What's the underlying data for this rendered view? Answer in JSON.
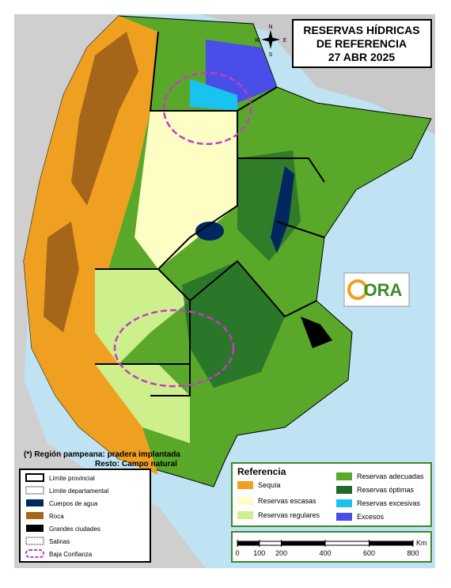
{
  "header": {
    "title_lines": [
      "RESERVAS HÍDRICAS",
      "DE REFERENCIA",
      "27 ABR 2025"
    ]
  },
  "compass": {
    "north": "N",
    "south": "S",
    "east": "E",
    "west": "W"
  },
  "logo": {
    "text": "ORA"
  },
  "note": {
    "lines": [
      "(*) Región pampeana: pradera implantada",
      "Resto: Campo natural"
    ]
  },
  "map_legend": {
    "items": [
      "Límite provincial",
      "Límite departamental",
      "Cuerpos de agua",
      "Roca",
      "Grandes ciudades",
      "Salinas",
      "Baja Confianza"
    ]
  },
  "reference": {
    "title": "Referencia",
    "items": [
      "Sequía",
      "Reservas escasas",
      "Reservas regulares",
      "Reservas adecuadas",
      "Reservas óptimas",
      "Reservas excesivas",
      "Excesos"
    ]
  },
  "scale": {
    "unit": "Km",
    "ticks": [
      0,
      100,
      200,
      400,
      600,
      800
    ]
  }
}
